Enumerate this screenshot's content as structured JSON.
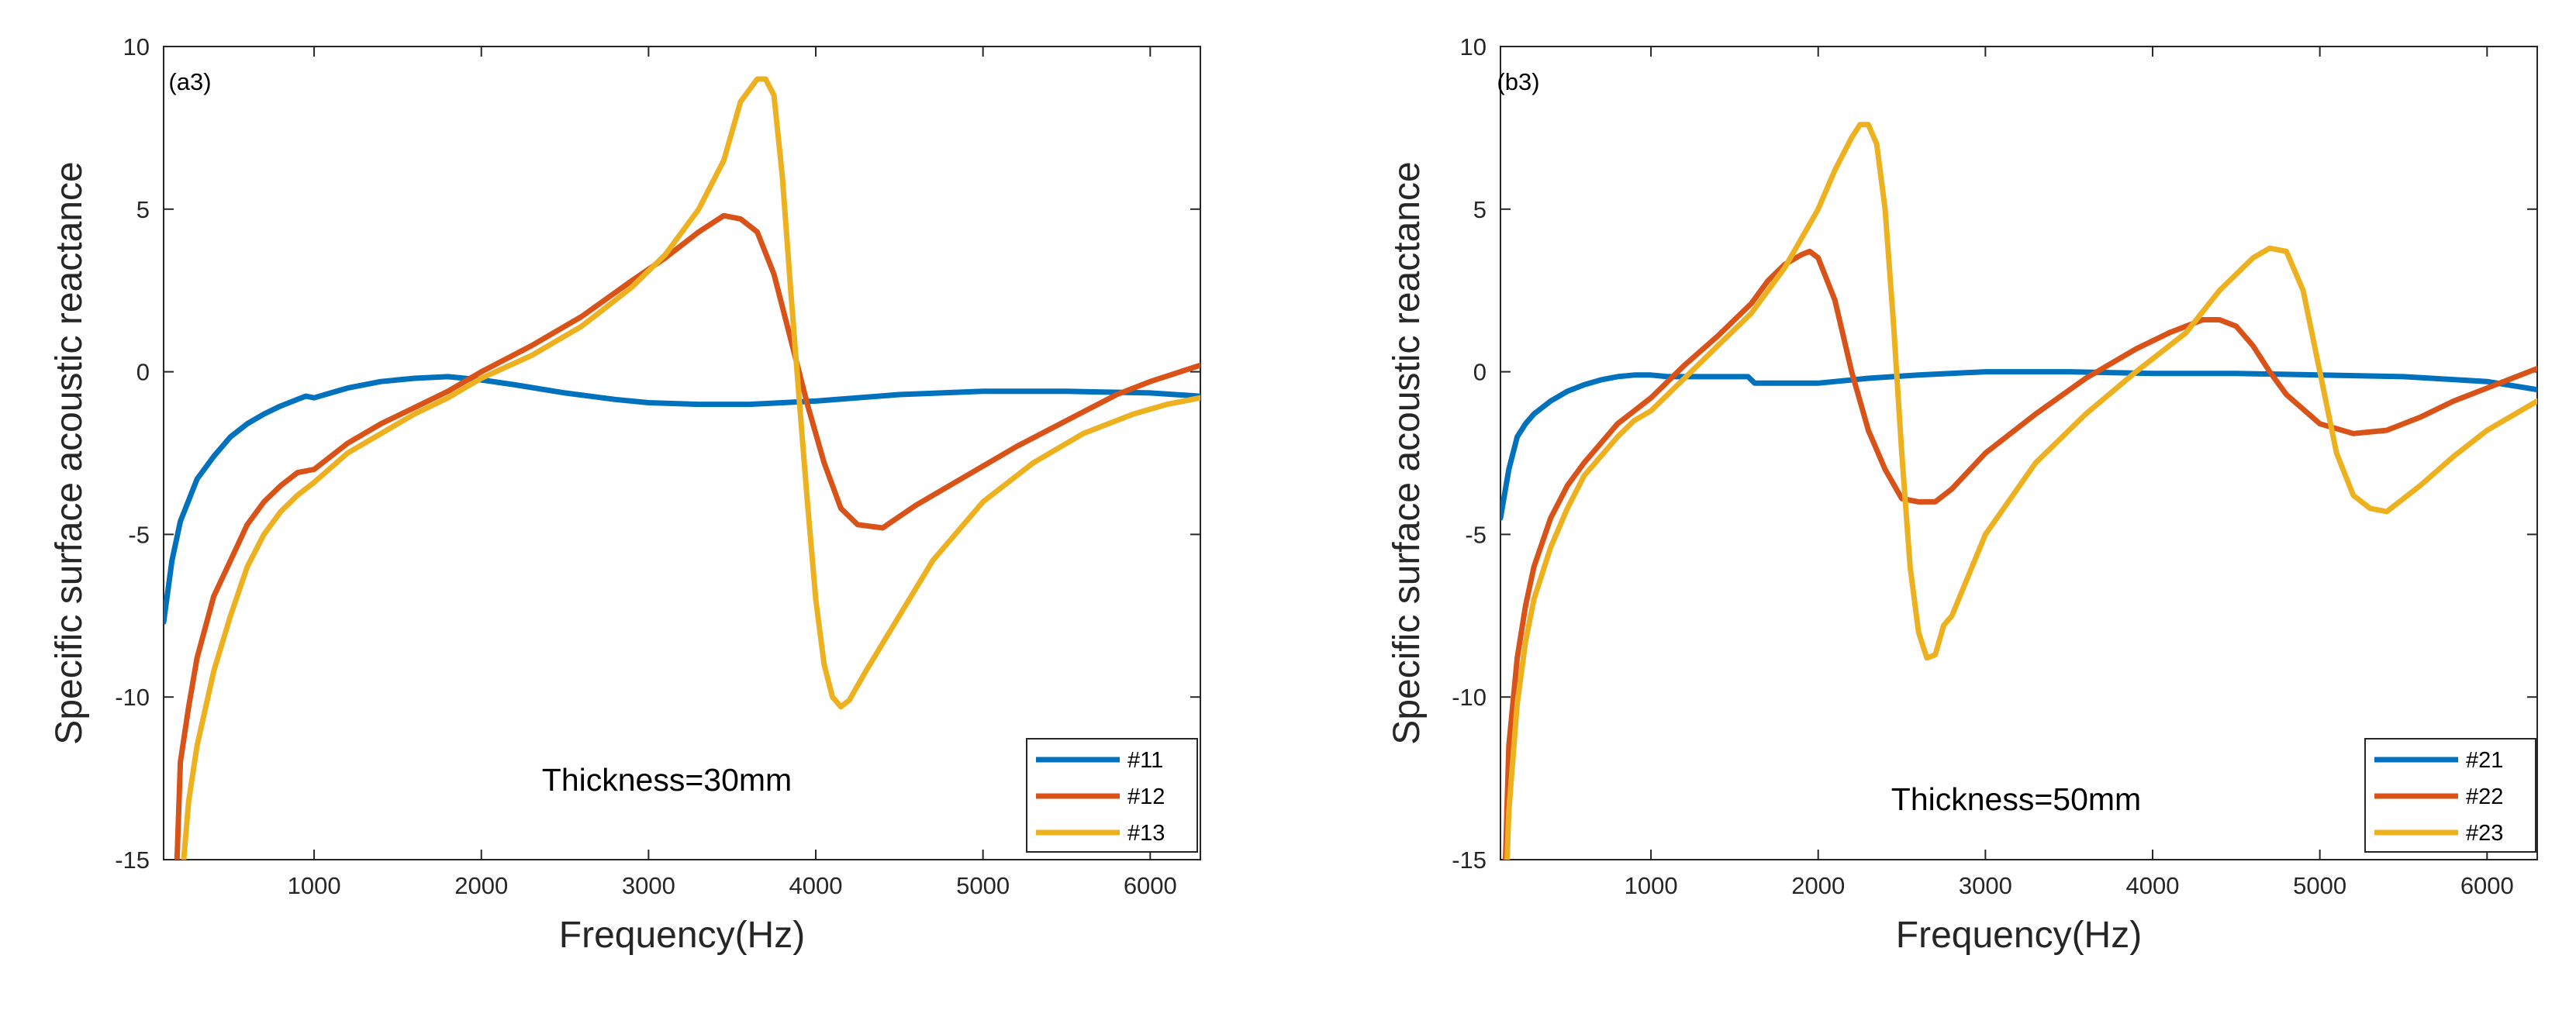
{
  "chart_data": [
    {
      "type": "line",
      "panel_label": "(a3)",
      "annotation": "Thickness=30mm",
      "xlabel": "Frequency(Hz)",
      "ylabel": "Specific surface acoustic reactance",
      "xlim": [
        100,
        6300
      ],
      "ylim": [
        -15,
        10
      ],
      "xticks": [
        1000,
        2000,
        3000,
        4000,
        5000,
        6000
      ],
      "yticks": [
        -15,
        -10,
        -5,
        0,
        5,
        10
      ],
      "legend_position": "bottom-right",
      "series": [
        {
          "name": "#11",
          "color": "#0072BD",
          "x": [
            100,
            150,
            200,
            300,
            400,
            500,
            600,
            700,
            800,
            900,
            950,
            1000,
            1100,
            1200,
            1400,
            1600,
            1800,
            2000,
            2200,
            2500,
            2800,
            3000,
            3300,
            3600,
            4000,
            4500,
            5000,
            5500,
            6000,
            6300
          ],
          "y": [
            -7.7,
            -5.8,
            -4.6,
            -3.3,
            -2.6,
            -2.0,
            -1.6,
            -1.3,
            -1.05,
            -0.85,
            -0.75,
            -0.8,
            -0.65,
            -0.5,
            -0.3,
            -0.2,
            -0.15,
            -0.25,
            -0.4,
            -0.65,
            -0.85,
            -0.95,
            -1.0,
            -1.0,
            -0.9,
            -0.7,
            -0.6,
            -0.6,
            -0.65,
            -0.75
          ]
        },
        {
          "name": "#12",
          "color": "#D95319",
          "x": [
            180,
            200,
            250,
            300,
            400,
            500,
            600,
            700,
            800,
            900,
            1000,
            1200,
            1400,
            1600,
            1800,
            2000,
            2300,
            2600,
            2900,
            3100,
            3300,
            3450,
            3550,
            3650,
            3750,
            3850,
            3950,
            4050,
            4150,
            4250,
            4400,
            4600,
            4900,
            5200,
            5500,
            5800,
            6000,
            6300
          ],
          "y": [
            -15,
            -12.0,
            -10.3,
            -8.8,
            -6.9,
            -5.8,
            -4.7,
            -4.0,
            -3.5,
            -3.1,
            -3.0,
            -2.2,
            -1.6,
            -1.1,
            -0.6,
            0.0,
            0.8,
            1.7,
            2.8,
            3.5,
            4.3,
            4.8,
            4.7,
            4.3,
            3.0,
            1.0,
            -1.0,
            -2.8,
            -4.2,
            -4.7,
            -4.8,
            -4.1,
            -3.2,
            -2.3,
            -1.5,
            -0.7,
            -0.3,
            0.2
          ]
        },
        {
          "name": "#13",
          "color": "#EDB120",
          "x": [
            220,
            250,
            300,
            400,
            500,
            600,
            700,
            800,
            900,
            1000,
            1200,
            1400,
            1600,
            1800,
            2000,
            2300,
            2600,
            2900,
            3100,
            3300,
            3450,
            3550,
            3650,
            3700,
            3750,
            3800,
            3850,
            3900,
            3950,
            4000,
            4050,
            4100,
            4150,
            4200,
            4300,
            4500,
            4700,
            5000,
            5300,
            5600,
            5900,
            6100,
            6300
          ],
          "y": [
            -15,
            -13.2,
            -11.5,
            -9.2,
            -7.5,
            -6.0,
            -5.0,
            -4.3,
            -3.8,
            -3.4,
            -2.5,
            -1.9,
            -1.3,
            -0.8,
            -0.2,
            0.5,
            1.4,
            2.6,
            3.6,
            5.0,
            6.5,
            8.3,
            9.0,
            9.0,
            8.5,
            6.0,
            2.5,
            -0.8,
            -4.0,
            -7.0,
            -9.0,
            -10.0,
            -10.3,
            -10.1,
            -9.2,
            -7.5,
            -5.8,
            -4.0,
            -2.8,
            -1.9,
            -1.3,
            -1.0,
            -0.8
          ]
        }
      ]
    },
    {
      "type": "line",
      "panel_label": "(b3)",
      "annotation": "Thickness=50mm",
      "xlabel": "Frequency(Hz)",
      "ylabel": "Specific surface acoustic reactance",
      "xlim": [
        100,
        6300
      ],
      "ylim": [
        -15,
        10
      ],
      "xticks": [
        1000,
        2000,
        3000,
        4000,
        5000,
        6000
      ],
      "yticks": [
        -15,
        -10,
        -5,
        0,
        5,
        10
      ],
      "legend_position": "bottom-right",
      "series": [
        {
          "name": "#21",
          "color": "#0072BD",
          "x": [
            100,
            150,
            200,
            250,
            300,
            400,
            500,
            600,
            700,
            800,
            900,
            1000,
            1100,
            1300,
            1500,
            1580,
            1620,
            1800,
            2000,
            2300,
            2600,
            3000,
            3500,
            4000,
            4500,
            5000,
            5500,
            6000,
            6300
          ],
          "y": [
            -4.5,
            -3.0,
            -2.0,
            -1.6,
            -1.3,
            -0.9,
            -0.6,
            -0.4,
            -0.25,
            -0.15,
            -0.1,
            -0.1,
            -0.15,
            -0.15,
            -0.15,
            -0.15,
            -0.35,
            -0.35,
            -0.35,
            -0.2,
            -0.1,
            0.0,
            0.0,
            -0.05,
            -0.05,
            -0.1,
            -0.15,
            -0.3,
            -0.55
          ]
        },
        {
          "name": "#22",
          "color": "#D95319",
          "x": [
            130,
            150,
            200,
            250,
            300,
            400,
            500,
            600,
            700,
            800,
            900,
            1000,
            1200,
            1400,
            1600,
            1700,
            1800,
            1900,
            1950,
            2000,
            2100,
            2200,
            2300,
            2400,
            2500,
            2600,
            2700,
            2800,
            3000,
            3300,
            3600,
            3900,
            4100,
            4300,
            4400,
            4500,
            4600,
            4700,
            4800,
            5000,
            5200,
            5400,
            5600,
            5800,
            6000,
            6300
          ],
          "y": [
            -15,
            -11.5,
            -8.8,
            -7.2,
            -6.0,
            -4.5,
            -3.5,
            -2.8,
            -2.2,
            -1.6,
            -1.2,
            -0.8,
            0.2,
            1.1,
            2.1,
            2.8,
            3.3,
            3.6,
            3.7,
            3.5,
            2.2,
            0.0,
            -1.8,
            -3.0,
            -3.9,
            -4.0,
            -4.0,
            -3.6,
            -2.5,
            -1.3,
            -0.2,
            0.7,
            1.2,
            1.6,
            1.6,
            1.4,
            0.8,
            0.0,
            -0.7,
            -1.6,
            -1.9,
            -1.8,
            -1.4,
            -0.9,
            -0.5,
            0.1
          ]
        },
        {
          "name": "#23",
          "color": "#EDB120",
          "x": [
            140,
            150,
            200,
            250,
            300,
            400,
            500,
            600,
            700,
            800,
            900,
            1000,
            1200,
            1400,
            1600,
            1800,
            2000,
            2100,
            2200,
            2250,
            2300,
            2350,
            2400,
            2450,
            2500,
            2550,
            2600,
            2650,
            2700,
            2750,
            2800,
            3000,
            3300,
            3600,
            3900,
            4200,
            4400,
            4600,
            4700,
            4800,
            4900,
            5000,
            5100,
            5200,
            5300,
            5400,
            5600,
            5800,
            6000,
            6300
          ],
          "y": [
            -15,
            -13.5,
            -10.2,
            -8.3,
            -7.0,
            -5.4,
            -4.2,
            -3.2,
            -2.6,
            -2.0,
            -1.5,
            -1.2,
            -0.2,
            0.8,
            1.8,
            3.2,
            5.0,
            6.2,
            7.2,
            7.6,
            7.6,
            7.0,
            5.0,
            1.5,
            -2.5,
            -6.0,
            -8.0,
            -8.8,
            -8.7,
            -7.8,
            -7.5,
            -5.0,
            -2.8,
            -1.3,
            0.0,
            1.2,
            2.5,
            3.5,
            3.8,
            3.7,
            2.5,
            0.0,
            -2.5,
            -3.8,
            -4.2,
            -4.3,
            -3.5,
            -2.6,
            -1.8,
            -0.9
          ]
        }
      ]
    }
  ]
}
